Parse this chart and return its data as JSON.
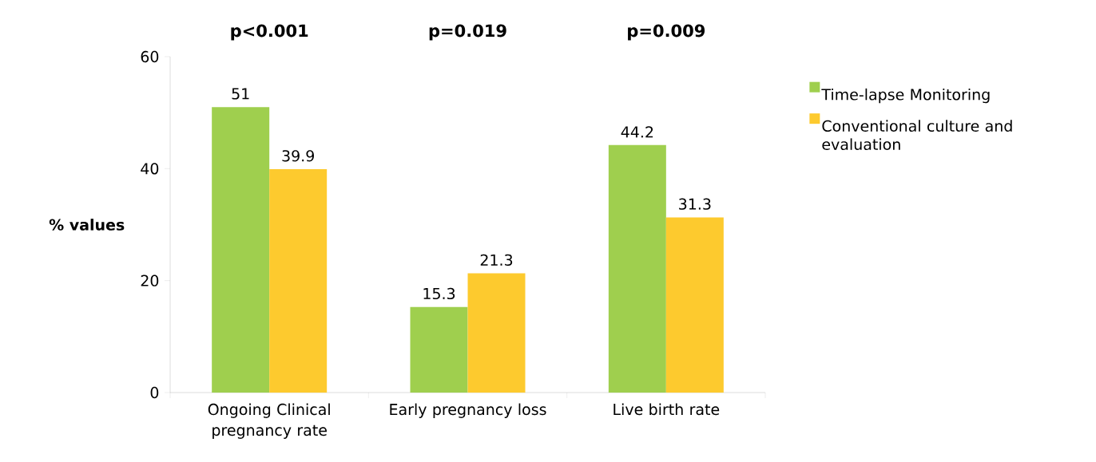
{
  "chart_data": {
    "type": "bar",
    "ylabel": "% values",
    "categories": [
      "Ongoing Clinical pregnancy rate",
      "Early pregnancy loss",
      "Live birth rate"
    ],
    "series": [
      {
        "name": "Time-lapse Monitoring",
        "color": "#9fcf4e",
        "values": [
          51,
          15.3,
          44.2
        ]
      },
      {
        "name": "Conventional culture and evaluation",
        "color": "#fdca2e",
        "values": [
          39.9,
          21.3,
          31.3
        ]
      }
    ],
    "ylim": [
      0,
      60
    ],
    "yticks": [
      0,
      20,
      40,
      60
    ],
    "data_labels": true,
    "legend": "right",
    "grid": false,
    "annotations": [
      "p<0.001",
      "p=0.019",
      "p=0.009"
    ]
  }
}
